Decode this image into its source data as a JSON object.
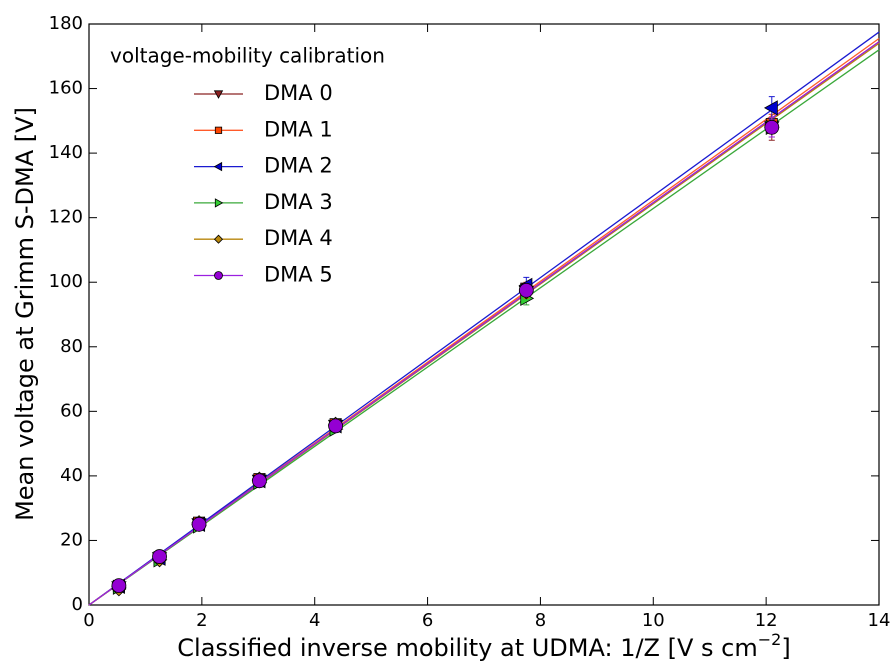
{
  "chart_data": {
    "type": "scatter",
    "xlabel": [
      "Classified inverse mobility at UDMA: 1/Z [V s cm",
      "−2",
      "]"
    ],
    "ylabel": "Mean voltage at Grimm S-DMA [V]",
    "legend_title": "voltage-mobility calibration",
    "legend": "upper left",
    "x": [
      0.53,
      1.25,
      1.95,
      3.02,
      4.37,
      7.75,
      12.1
    ],
    "xlim": [
      0,
      14
    ],
    "xticks": [
      0,
      2,
      4,
      6,
      8,
      10,
      12,
      14
    ],
    "ylim": [
      0,
      180
    ],
    "yticks": [
      0,
      20,
      40,
      60,
      80,
      100,
      120,
      140,
      160,
      180
    ],
    "series": [
      {
        "name": "DMA 0",
        "marker": "v",
        "color": "#8b2020",
        "line_color": "#8b2323",
        "values": [
          5.5,
          14.5,
          25,
          38.5,
          55.5,
          97,
          148
        ],
        "errors": [
          1,
          1,
          1,
          1,
          1,
          2,
          4
        ],
        "fit_x": [
          0,
          14
        ],
        "fit_y": [
          0,
          174.5
        ]
      },
      {
        "name": "DMA 1",
        "marker": "s",
        "color": "#ff4500",
        "line_color": "#ff5a2a",
        "values": [
          5.8,
          14.8,
          25.5,
          39,
          56,
          98,
          149
        ],
        "errors": [
          1,
          1,
          1,
          1,
          1,
          2,
          3
        ],
        "fit_x": [
          0,
          14
        ],
        "fit_y": [
          0,
          175.5
        ]
      },
      {
        "name": "DMA 2",
        "marker": "<",
        "color": "#0000cd",
        "line_color": "#1a1ad0",
        "values": [
          5.8,
          14.5,
          25,
          38.5,
          55.5,
          99,
          154
        ],
        "errors": [
          1,
          1,
          1,
          1,
          1,
          2.5,
          3.5
        ],
        "fit_x": [
          0,
          14
        ],
        "fit_y": [
          0,
          177.5
        ]
      },
      {
        "name": "DMA 3",
        "marker": ">",
        "color": "#32cd32",
        "line_color": "#3aa83a",
        "values": [
          5.5,
          14,
          24.5,
          38,
          54.5,
          95,
          148
        ],
        "errors": [
          1,
          1,
          1,
          1,
          1,
          2,
          3
        ],
        "fit_x": [
          0,
          14
        ],
        "fit_y": [
          0,
          172
        ]
      },
      {
        "name": "DMA 4",
        "marker": "D",
        "color": "#b8860b",
        "line_color": "#b8860b",
        "values": [
          5,
          14,
          25.5,
          39,
          56,
          97,
          148
        ],
        "errors": [
          1,
          1,
          1,
          1,
          1,
          2,
          3
        ],
        "fit_x": [
          0,
          14
        ],
        "fit_y": [
          0,
          174
        ]
      },
      {
        "name": "DMA 5",
        "marker": "o",
        "color": "#9400d3",
        "line_color": "#9b20e0",
        "values": [
          6,
          15,
          25,
          38.5,
          55.5,
          97.5,
          148
        ],
        "errors": [
          1,
          1,
          1,
          1,
          1,
          2,
          3
        ],
        "fit_x": [
          0,
          14
        ],
        "fit_y": [
          0,
          174.5
        ]
      }
    ]
  }
}
